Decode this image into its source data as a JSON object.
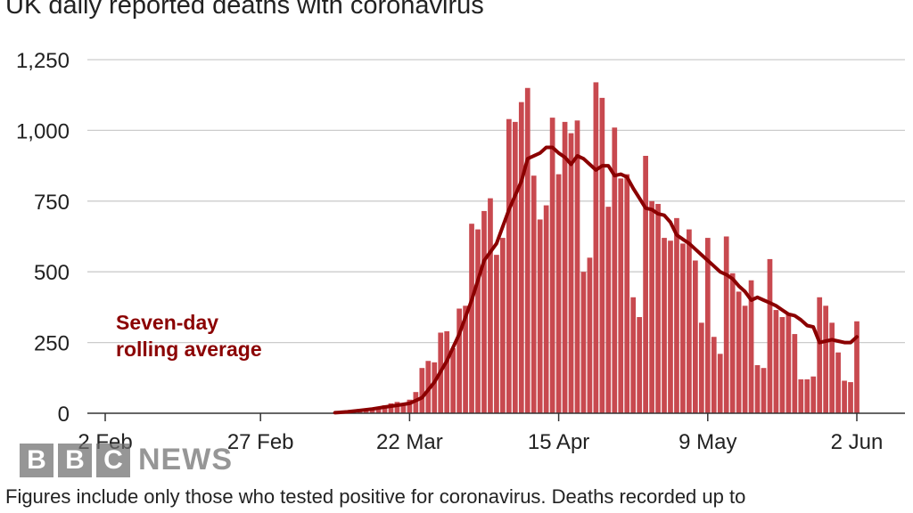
{
  "chart_data": {
    "type": "bar",
    "title": "UK daily reported deaths with coronavirus",
    "xlabel": "",
    "ylabel": "",
    "ylim": [
      0,
      1250
    ],
    "yticks": [
      "0",
      "250",
      "500",
      "750",
      "1,000",
      "1,250"
    ],
    "ytick_values": [
      0,
      250,
      500,
      750,
      1000,
      1250
    ],
    "xticks": [
      {
        "label": "2 Feb",
        "date": "2020-02-02"
      },
      {
        "label": "27 Feb",
        "date": "2020-02-27"
      },
      {
        "label": "22 Mar",
        "date": "2020-03-22"
      },
      {
        "label": "15 Apr",
        "date": "2020-04-15"
      },
      {
        "label": "9 May",
        "date": "2020-05-09"
      },
      {
        "label": "2 Jun",
        "date": "2020-06-02"
      }
    ],
    "x_start": "2020-02-02",
    "x_end": "2020-06-02",
    "grid": true,
    "series": [
      {
        "kind": "bars",
        "color": "#c8494f",
        "points": [
          [
            "2020-03-10",
            3
          ],
          [
            "2020-03-11",
            2
          ],
          [
            "2020-03-12",
            5
          ],
          [
            "2020-03-13",
            8
          ],
          [
            "2020-03-14",
            15
          ],
          [
            "2020-03-15",
            12
          ],
          [
            "2020-03-16",
            20
          ],
          [
            "2020-03-17",
            18
          ],
          [
            "2020-03-18",
            28
          ],
          [
            "2020-03-19",
            35
          ],
          [
            "2020-03-20",
            40
          ],
          [
            "2020-03-21",
            35
          ],
          [
            "2020-03-22",
            48
          ],
          [
            "2020-03-23",
            75
          ],
          [
            "2020-03-24",
            160
          ],
          [
            "2020-03-25",
            185
          ],
          [
            "2020-03-26",
            180
          ],
          [
            "2020-03-27",
            285
          ],
          [
            "2020-03-28",
            290
          ],
          [
            "2020-03-29",
            230
          ],
          [
            "2020-03-30",
            370
          ],
          [
            "2020-03-31",
            380
          ],
          [
            "2020-04-01",
            670
          ],
          [
            "2020-04-02",
            650
          ],
          [
            "2020-04-03",
            715
          ],
          [
            "2020-04-04",
            760
          ],
          [
            "2020-04-05",
            560
          ],
          [
            "2020-04-06",
            620
          ],
          [
            "2020-04-07",
            1040
          ],
          [
            "2020-04-08",
            1030
          ],
          [
            "2020-04-09",
            1100
          ],
          [
            "2020-04-10",
            1150
          ],
          [
            "2020-04-11",
            840
          ],
          [
            "2020-04-12",
            685
          ],
          [
            "2020-04-13",
            735
          ],
          [
            "2020-04-14",
            1045
          ],
          [
            "2020-04-15",
            845
          ],
          [
            "2020-04-16",
            1030
          ],
          [
            "2020-04-17",
            990
          ],
          [
            "2020-04-18",
            1035
          ],
          [
            "2020-04-19",
            500
          ],
          [
            "2020-04-20",
            550
          ],
          [
            "2020-04-21",
            1170
          ],
          [
            "2020-04-22",
            1115
          ],
          [
            "2020-04-23",
            730
          ],
          [
            "2020-04-24",
            1010
          ],
          [
            "2020-04-25",
            830
          ],
          [
            "2020-04-26",
            845
          ],
          [
            "2020-04-27",
            410
          ],
          [
            "2020-04-28",
            340
          ],
          [
            "2020-04-29",
            910
          ],
          [
            "2020-04-30",
            750
          ],
          [
            "2020-05-01",
            740
          ],
          [
            "2020-05-02",
            620
          ],
          [
            "2020-05-03",
            610
          ],
          [
            "2020-05-04",
            690
          ],
          [
            "2020-05-05",
            600
          ],
          [
            "2020-05-06",
            650
          ],
          [
            "2020-05-07",
            540
          ],
          [
            "2020-05-08",
            320
          ],
          [
            "2020-05-09",
            620
          ],
          [
            "2020-05-10",
            270
          ],
          [
            "2020-05-11",
            210
          ],
          [
            "2020-05-12",
            625
          ],
          [
            "2020-05-13",
            495
          ],
          [
            "2020-05-14",
            430
          ],
          [
            "2020-05-15",
            380
          ],
          [
            "2020-05-16",
            470
          ],
          [
            "2020-05-17",
            170
          ],
          [
            "2020-05-18",
            160
          ],
          [
            "2020-05-19",
            545
          ],
          [
            "2020-05-20",
            365
          ],
          [
            "2020-05-21",
            340
          ],
          [
            "2020-05-22",
            350
          ],
          [
            "2020-05-23",
            280
          ],
          [
            "2020-05-24",
            120
          ],
          [
            "2020-05-25",
            120
          ],
          [
            "2020-05-26",
            130
          ],
          [
            "2020-05-27",
            410
          ],
          [
            "2020-05-28",
            380
          ],
          [
            "2020-05-29",
            320
          ],
          [
            "2020-05-30",
            215
          ],
          [
            "2020-05-31",
            115
          ],
          [
            "2020-06-01",
            110
          ],
          [
            "2020-06-02",
            325
          ]
        ]
      },
      {
        "kind": "line",
        "name": "Seven-day rolling average",
        "color": "#8b0000",
        "points": [
          [
            "2020-03-10",
            2
          ],
          [
            "2020-03-12",
            5
          ],
          [
            "2020-03-14",
            10
          ],
          [
            "2020-03-16",
            15
          ],
          [
            "2020-03-18",
            22
          ],
          [
            "2020-03-20",
            28
          ],
          [
            "2020-03-22",
            35
          ],
          [
            "2020-03-24",
            55
          ],
          [
            "2020-03-26",
            110
          ],
          [
            "2020-03-28",
            185
          ],
          [
            "2020-03-30",
            280
          ],
          [
            "2020-04-01",
            400
          ],
          [
            "2020-04-03",
            540
          ],
          [
            "2020-04-05",
            600
          ],
          [
            "2020-04-07",
            720
          ],
          [
            "2020-04-09",
            820
          ],
          [
            "2020-04-10",
            900
          ],
          [
            "2020-04-12",
            920
          ],
          [
            "2020-04-13",
            940
          ],
          [
            "2020-04-14",
            940
          ],
          [
            "2020-04-15",
            920
          ],
          [
            "2020-04-16",
            905
          ],
          [
            "2020-04-17",
            880
          ],
          [
            "2020-04-18",
            910
          ],
          [
            "2020-04-19",
            900
          ],
          [
            "2020-04-20",
            880
          ],
          [
            "2020-04-21",
            860
          ],
          [
            "2020-04-22",
            875
          ],
          [
            "2020-04-23",
            875
          ],
          [
            "2020-04-24",
            840
          ],
          [
            "2020-04-25",
            845
          ],
          [
            "2020-04-26",
            835
          ],
          [
            "2020-04-27",
            795
          ],
          [
            "2020-04-28",
            760
          ],
          [
            "2020-04-29",
            725
          ],
          [
            "2020-04-30",
            720
          ],
          [
            "2020-05-01",
            705
          ],
          [
            "2020-05-02",
            700
          ],
          [
            "2020-05-03",
            675
          ],
          [
            "2020-05-04",
            630
          ],
          [
            "2020-05-05",
            615
          ],
          [
            "2020-05-06",
            600
          ],
          [
            "2020-05-07",
            580
          ],
          [
            "2020-05-08",
            560
          ],
          [
            "2020-05-09",
            540
          ],
          [
            "2020-05-10",
            520
          ],
          [
            "2020-05-11",
            500
          ],
          [
            "2020-05-12",
            490
          ],
          [
            "2020-05-13",
            475
          ],
          [
            "2020-05-14",
            450
          ],
          [
            "2020-05-15",
            430
          ],
          [
            "2020-05-16",
            400
          ],
          [
            "2020-05-17",
            410
          ],
          [
            "2020-05-18",
            400
          ],
          [
            "2020-05-19",
            390
          ],
          [
            "2020-05-20",
            380
          ],
          [
            "2020-05-21",
            365
          ],
          [
            "2020-05-22",
            350
          ],
          [
            "2020-05-23",
            345
          ],
          [
            "2020-05-24",
            330
          ],
          [
            "2020-05-25",
            310
          ],
          [
            "2020-05-26",
            305
          ],
          [
            "2020-05-27",
            250
          ],
          [
            "2020-05-28",
            255
          ],
          [
            "2020-05-29",
            260
          ],
          [
            "2020-05-30",
            255
          ],
          [
            "2020-05-31",
            250
          ],
          [
            "2020-06-01",
            250
          ],
          [
            "2020-06-02",
            270
          ]
        ]
      }
    ],
    "annotation": [
      "Seven-day",
      "rolling average"
    ]
  },
  "footnote": "Figures include only those who tested positive for coronavirus. Deaths recorded up to",
  "logo": {
    "letters": [
      "B",
      "B",
      "C"
    ],
    "word": "NEWS"
  }
}
